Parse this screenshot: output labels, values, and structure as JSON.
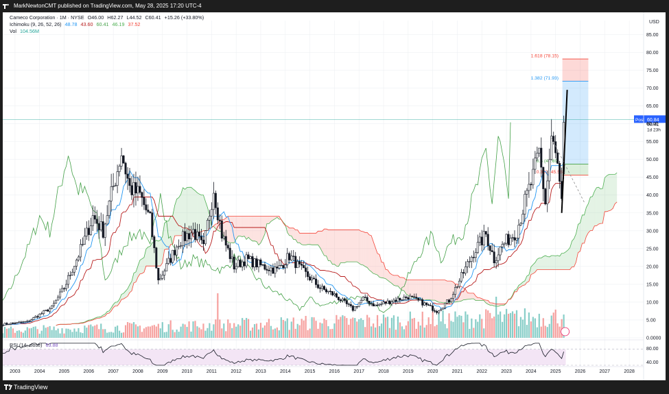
{
  "header": {
    "published_text": "MarkNewtonCMT published on TradingView.com, May 28, 2025 17:20 UTC-4"
  },
  "legend": {
    "symbol": "Cameco Corporation · 1M · NYSE",
    "open_label": "O",
    "open": "46.00",
    "high_label": "H",
    "high": "62.27",
    "low_label": "L",
    "low": "44.52",
    "close_label": "C",
    "close": "60.41",
    "change": "+15.26 (+33.80%)",
    "ichimoku_label": "Ichimoku (9, 26, 52, 26)",
    "ichimoku_values": [
      "48.78",
      "43.60",
      "60.41",
      "46.19",
      "37.52"
    ],
    "ichimoku_colors": [
      "#2196f3",
      "#b71c1c",
      "#43a047",
      "#4caf50",
      "#f44336"
    ],
    "vol_label": "Vol",
    "vol_value": "104.56M",
    "rsi_label": "RSI (14, close)",
    "rsi_value": "63.88"
  },
  "price_axis": {
    "currency": "USD",
    "ticks": [
      "85.00",
      "80.00",
      "75.00",
      "70.00",
      "65.00",
      "60.00",
      "55.00",
      "50.00",
      "45.00",
      "40.00",
      "35.00",
      "30.00",
      "25.00",
      "20.00",
      "15.00",
      "10.00",
      "5.00",
      "0.0000"
    ],
    "post_label": "Post",
    "post_value": "60.84",
    "last_price": "60.41",
    "countdown": "1d 23h"
  },
  "rsi_axis": {
    "ticks": [
      "80.00",
      "40.00"
    ]
  },
  "time_axis": {
    "ticks": [
      "2003",
      "2004",
      "2005",
      "2006",
      "2007",
      "2008",
      "2009",
      "2010",
      "2011",
      "2012",
      "2013",
      "2014",
      "2015",
      "2016",
      "2017",
      "2018",
      "2019",
      "2020",
      "2021",
      "2022",
      "2023",
      "2024",
      "2025",
      "2026",
      "2027",
      "2028"
    ]
  },
  "fib": {
    "levels": [
      {
        "label": "1.618 (78.15)",
        "price": 78.15,
        "color": "#f44336"
      },
      {
        "label": "1.382 (71.93)",
        "price": 71.93,
        "color": "#2196f3"
      },
      {
        "label": "0.5 (48.69)",
        "price": 48.69,
        "color": "#43a047"
      },
      {
        "label": "0.382 (45.58)",
        "price": 45.58,
        "color": "#f44336"
      }
    ]
  },
  "footer": {
    "brand": "TradingView"
  },
  "colors": {
    "up": "#131722",
    "tenkan": "#2196f3",
    "kijun": "#b71c1c",
    "chikou": "#43a047",
    "cloud_bull": "#4caf50",
    "cloud_bear": "#f44336",
    "vol_up": "#26a69a",
    "vol_down": "#ef5350",
    "rsi_line": "#131722",
    "rsi_bg": "#f3e5f5",
    "last_price_line": "#26a69a"
  },
  "chart_data": {
    "type": "candlestick",
    "title": "Cameco Corporation · 1M · NYSE",
    "ylabel": "USD",
    "ylim": [
      0,
      87
    ],
    "x_range": [
      "2002-07",
      "2028-08"
    ],
    "anchors": [
      [
        "2002-07",
        3.8
      ],
      [
        "2003-07",
        4.5
      ],
      [
        "2004-01",
        6.5
      ],
      [
        "2004-07",
        8.5
      ],
      [
        "2005-01",
        14
      ],
      [
        "2005-07",
        22
      ],
      [
        "2005-10",
        26
      ],
      [
        "2006-03",
        34
      ],
      [
        "2006-08",
        30
      ],
      [
        "2006-12",
        40
      ],
      [
        "2007-05",
        52
      ],
      [
        "2007-09",
        42
      ],
      [
        "2008-02",
        40
      ],
      [
        "2008-07",
        33
      ],
      [
        "2008-11",
        16
      ],
      [
        "2009-03",
        20
      ],
      [
        "2009-09",
        27
      ],
      [
        "2010-04",
        30
      ],
      [
        "2010-09",
        25
      ],
      [
        "2011-02",
        42
      ],
      [
        "2011-06",
        29
      ],
      [
        "2011-12",
        20
      ],
      [
        "2012-06",
        22
      ],
      [
        "2013-02",
        20
      ],
      [
        "2013-09",
        19
      ],
      [
        "2014-03",
        23
      ],
      [
        "2014-09",
        19
      ],
      [
        "2015-06",
        14
      ],
      [
        "2016-01",
        12
      ],
      [
        "2016-10",
        8
      ],
      [
        "2017-03",
        11
      ],
      [
        "2017-09",
        9
      ],
      [
        "2018-06",
        10.5
      ],
      [
        "2019-01",
        11.5
      ],
      [
        "2019-08",
        9.8
      ],
      [
        "2020-03",
        7.5
      ],
      [
        "2020-09",
        10.5
      ],
      [
        "2021-02",
        16
      ],
      [
        "2021-09",
        24
      ],
      [
        "2022-03",
        29
      ],
      [
        "2022-07",
        22
      ],
      [
        "2022-11",
        26
      ],
      [
        "2023-06",
        30
      ],
      [
        "2023-10",
        38
      ],
      [
        "2024-02",
        45
      ],
      [
        "2024-05",
        52
      ],
      [
        "2024-08",
        38
      ],
      [
        "2024-11",
        56
      ],
      [
        "2025-02",
        48
      ],
      [
        "2025-04",
        37
      ],
      [
        "2025-05",
        60.41
      ]
    ],
    "ichimoku": {
      "conversion": 48.78,
      "base": 43.6,
      "lagging": 60.41,
      "lead_a": 46.19,
      "lead_b": 37.52
    },
    "volume_last": "104.56M",
    "rsi_last": 63.88,
    "projection": {
      "from": [
        "2025-04",
        35
      ],
      "to": [
        "2025-06",
        69.5
      ]
    }
  }
}
